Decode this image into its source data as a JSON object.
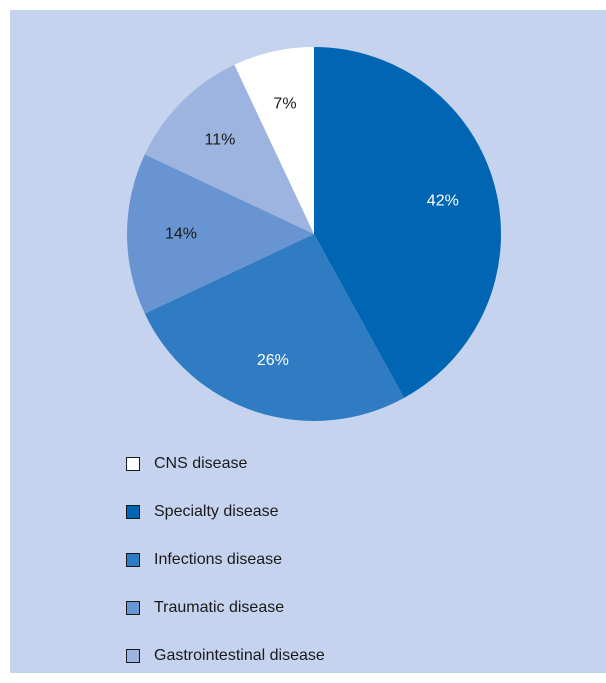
{
  "chart_data": {
    "type": "pie",
    "title": "",
    "slices": [
      {
        "label": "Specialty disease",
        "value": 42,
        "display": "42%",
        "color": "#0066b3",
        "text_color": "#ffffff"
      },
      {
        "label": "Infections disease",
        "value": 26,
        "display": "26%",
        "color": "#2f7cc2",
        "text_color": "#ffffff"
      },
      {
        "label": "Traumatic disease",
        "value": 14,
        "display": "14%",
        "color": "#6895d1",
        "text_color": "#1a1a1a"
      },
      {
        "label": "Gastrointestinal disease",
        "value": 11,
        "display": "11%",
        "color": "#9db4e0",
        "text_color": "#1a1a1a"
      },
      {
        "label": "CNS disease",
        "value": 7,
        "display": "7%",
        "color": "#ffffff",
        "text_color": "#1a1a1a"
      }
    ],
    "legend": {
      "placement": "bottom-left",
      "order": [
        "CNS disease",
        "Specialty disease",
        "Infections disease",
        "Traumatic disease",
        "Gastrointestinal disease"
      ]
    },
    "background_color": "#c6d3ee"
  }
}
